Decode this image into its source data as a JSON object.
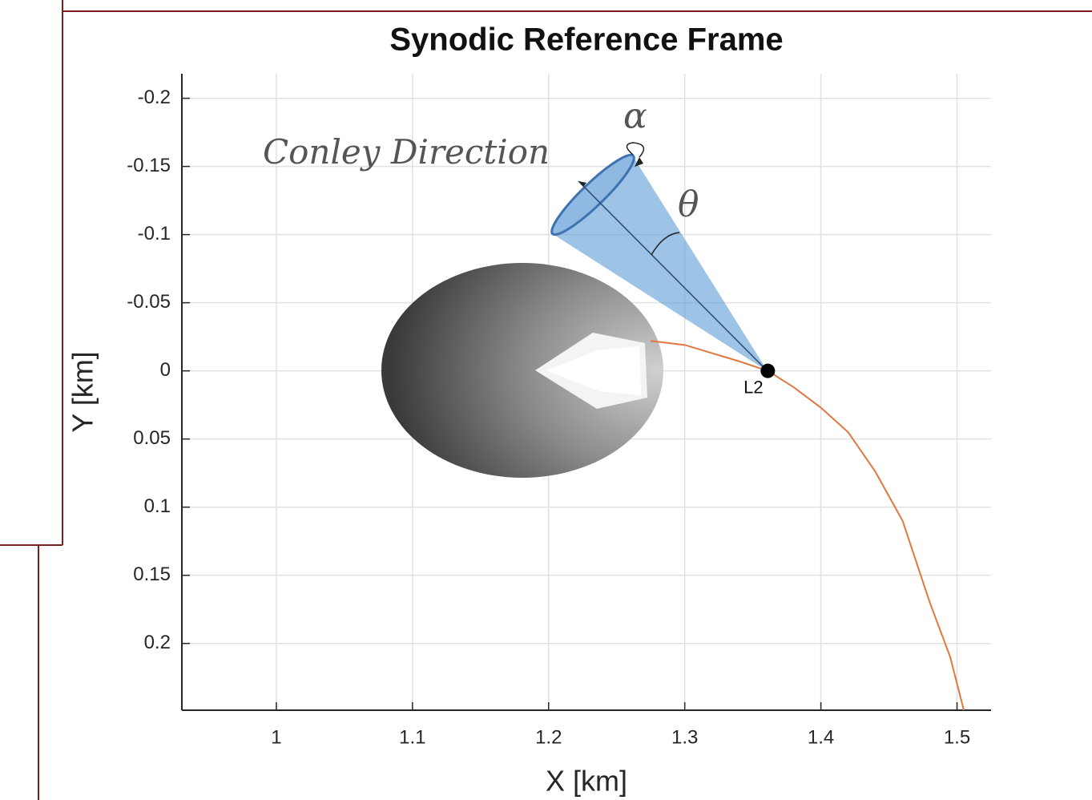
{
  "chart_data": {
    "type": "line",
    "title": "Synodic Reference Frame",
    "xlabel": "X [km]",
    "ylabel": "Y [km]",
    "xlim": [
      0.9306,
      1.525
    ],
    "ylim": [
      -0.218,
      0.249
    ],
    "y_reversed": true,
    "xticks": [
      1,
      1.1,
      1.2,
      1.3,
      1.4,
      1.5
    ],
    "yticks": [
      -0.2,
      -0.15,
      -0.1,
      -0.05,
      0,
      0.05,
      0.1,
      0.15,
      0.2
    ],
    "grid": true,
    "series": [
      {
        "color": "#e2773f",
        "x": [
          1.275,
          1.3,
          1.32,
          1.34,
          1.361,
          1.38,
          1.4,
          1.42,
          1.44,
          1.46,
          1.48,
          1.495,
          1.505
        ],
        "y": [
          -0.022,
          -0.019,
          -0.013,
          -0.007,
          0,
          0.012,
          0.027,
          0.045,
          0.074,
          0.11,
          0.17,
          0.21,
          0.249
        ]
      }
    ],
    "markers": [
      {
        "x": 1.361,
        "y": 0,
        "label": "L2",
        "color": "#000000"
      }
    ],
    "annotations": [
      "Conley Direction",
      "α",
      "θ"
    ]
  }
}
